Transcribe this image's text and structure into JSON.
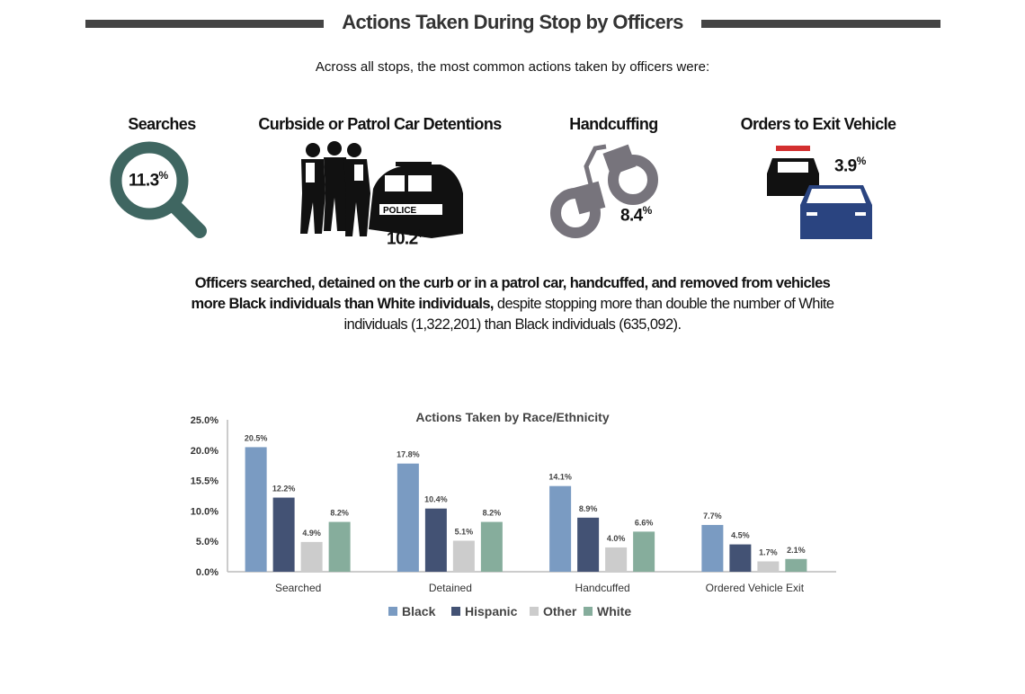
{
  "header": {
    "title": "Actions Taken During Stop by Officers",
    "subtitle": "Across all stops, the most common actions taken by officers were:"
  },
  "stats": [
    {
      "label": "Searches",
      "value": "11.3",
      "unit": "%",
      "icon": "magnifying-glass-icon",
      "color": "#3f6661"
    },
    {
      "label": "Curbside or Patrol Car Detentions",
      "value": "10.2",
      "unit": "%",
      "icon": "police-detention-icon",
      "badge": "POLICE"
    },
    {
      "label": "Handcuffing",
      "value": "8.4",
      "unit": "%",
      "icon": "handcuffs-icon",
      "color": "#77747c"
    },
    {
      "label": "Orders to Exit Vehicle",
      "value": "3.9",
      "unit": "%",
      "icon": "police-car-and-car-icon",
      "color": "#2a4480"
    }
  ],
  "summary": {
    "bold": "Officers searched, detained on the curb or in a patrol car, handcuffed, and removed from vehicles more Black individuals than White individuals,",
    "normal": " despite stopping more than double the number of White individuals (1,322,201) than Black individuals (635,092)."
  },
  "chart_data": {
    "type": "bar",
    "title": "Actions Taken by Race/Ethnicity",
    "categories": [
      "Searched",
      "Detained",
      "Handcuffed",
      "Ordered Vehicle Exit"
    ],
    "ylim": [
      0,
      25
    ],
    "yticks": [
      0,
      5,
      10,
      15.5,
      20,
      25
    ],
    "ytick_labels": [
      "0.0%",
      "5.0%",
      "10.0%",
      "15.5%",
      "20.0%",
      "25.0%"
    ],
    "grid": false,
    "legend": "bottom",
    "series": [
      {
        "name": "Black",
        "color": "#7a9bc2",
        "values": [
          20.5,
          17.8,
          14.1,
          7.7
        ],
        "labels": [
          "20.5%",
          "17.8%",
          "14.1%",
          "7.7%"
        ]
      },
      {
        "name": "Hispanic",
        "color": "#435274",
        "values": [
          12.2,
          10.4,
          8.9,
          4.5
        ],
        "labels": [
          "12.2%",
          "10.4%",
          "8.9%",
          "4.5%"
        ]
      },
      {
        "name": "Other",
        "color": "#cccccc",
        "values": [
          4.9,
          5.1,
          4.0,
          1.7
        ],
        "labels": [
          "4.9%",
          "5.1%",
          "4.0%",
          "1.7%"
        ]
      },
      {
        "name": "White",
        "color": "#86ad9c",
        "values": [
          8.2,
          8.2,
          6.6,
          2.1
        ],
        "labels": [
          "8.2%",
          "8.2%",
          "6.6%",
          "2.1%"
        ]
      }
    ]
  }
}
